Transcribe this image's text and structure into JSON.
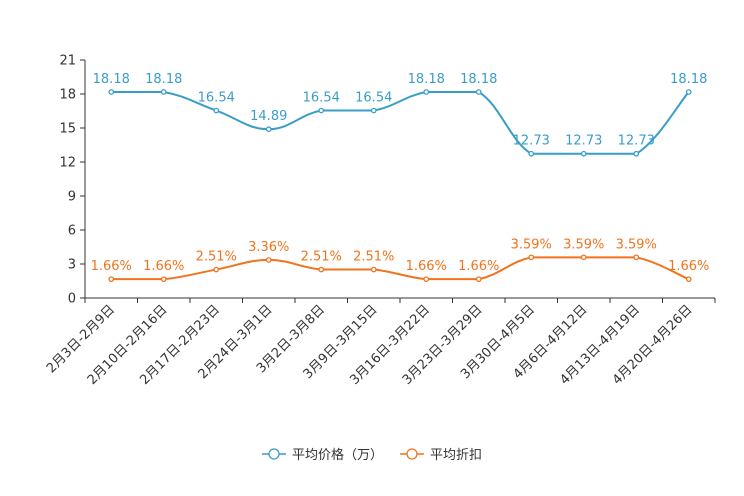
{
  "chart_data": {
    "type": "line",
    "title": "",
    "xlabel": "",
    "ylabel": "",
    "ylim": [
      0,
      21
    ],
    "yticks": [
      0,
      3,
      6,
      9,
      12,
      15,
      18,
      21
    ],
    "categories": [
      "2月3日-2月9日",
      "2月10日-2月16日",
      "2月17日-2月23日",
      "2月24日-3月1日",
      "3月2日-3月8日",
      "3月9日-3月15日",
      "3月16日-3月22日",
      "3月23日-3月29日",
      "3月30日-4月5日",
      "4月6日-4月12日",
      "4月13日-4月19日",
      "4月20日-4月26日"
    ],
    "series": [
      {
        "name": "平均价格（万）",
        "color": "#3a9dc8",
        "values": [
          18.18,
          18.18,
          16.54,
          14.89,
          16.54,
          16.54,
          18.18,
          18.18,
          12.73,
          12.73,
          12.73,
          18.18
        ],
        "labels": [
          "18.18",
          "18.18",
          "16.54",
          "14.89",
          "16.54",
          "16.54",
          "18.18",
          "18.18",
          "12.73",
          "12.73",
          "12.73",
          "18.18"
        ]
      },
      {
        "name": "平均折扣",
        "color": "#f0741e",
        "values": [
          1.66,
          1.66,
          2.51,
          3.36,
          2.51,
          2.51,
          1.66,
          1.66,
          3.59,
          3.59,
          3.59,
          1.66
        ],
        "labels": [
          "1.66%",
          "1.66%",
          "2.51%",
          "3.36%",
          "2.51%",
          "2.51%",
          "1.66%",
          "1.66%",
          "3.59%",
          "3.59%",
          "3.59%",
          "1.66%"
        ]
      }
    ],
    "legend_position": "bottom-center"
  }
}
